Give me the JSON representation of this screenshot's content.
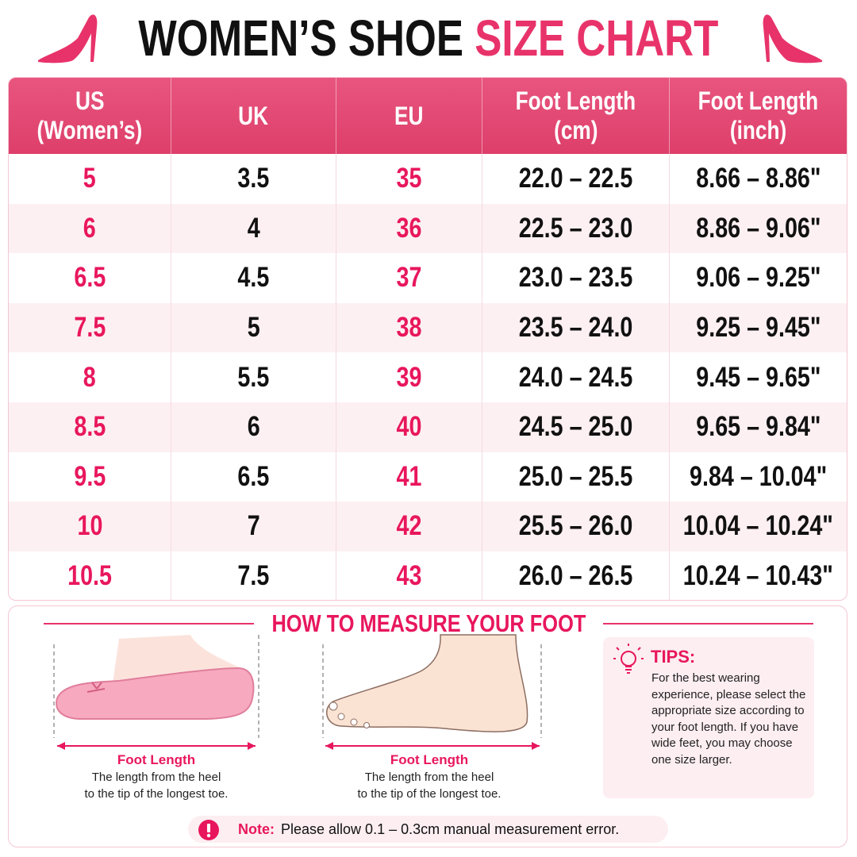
{
  "header": {
    "title_part1": "WOMEN’S SHOE",
    "title_part2": "SIZE CHART"
  },
  "table": {
    "columns": [
      [
        "US",
        "(Women’s)"
      ],
      [
        "UK"
      ],
      [
        "EU"
      ],
      [
        "Foot Length",
        "(cm)"
      ],
      [
        "Foot Length",
        "(inch)"
      ]
    ],
    "rows": [
      [
        "5",
        "3.5",
        "35",
        "22.0 – 22.5",
        "8.66 – 8.86\""
      ],
      [
        "6",
        "4",
        "36",
        "22.5 – 23.0",
        "8.86 – 9.06\""
      ],
      [
        "6.5",
        "4.5",
        "37",
        "23.0 – 23.5",
        "9.06 – 9.25\""
      ],
      [
        "7.5",
        "5",
        "38",
        "23.5 – 24.0",
        "9.25 – 9.45\""
      ],
      [
        "8",
        "5.5",
        "39",
        "24.0 – 24.5",
        "9.45 – 9.65\""
      ],
      [
        "8.5",
        "6",
        "40",
        "24.5 – 25.0",
        "9.65 – 9.84\""
      ],
      [
        "9.5",
        "6.5",
        "41",
        "25.0 – 25.5",
        "9.84 – 10.04\""
      ],
      [
        "10",
        "7",
        "42",
        "25.5 – 26.0",
        "10.04 – 10.24\""
      ],
      [
        "10.5",
        "7.5",
        "43",
        "26.0 – 26.5",
        "10.24 – 10.43\""
      ]
    ]
  },
  "measure": {
    "title": "HOW TO MEASURE YOUR FOOT",
    "illustrations": [
      {
        "label": "Foot Length",
        "description": [
          "The length from the heel",
          "to the tip of the longest toe."
        ]
      },
      {
        "label": "Foot Length",
        "description": [
          "The length from the heel",
          "to the tip of the longest toe."
        ]
      }
    ]
  },
  "tips": {
    "title": "TIPS:",
    "text": "For the best wearing experience, please select the appropriate size according to your foot length. If you have wide feet, you may choose one size larger."
  },
  "note": {
    "label": "Note:",
    "text": "Please allow 0.1 – 0.3cm manual measurement error."
  }
}
